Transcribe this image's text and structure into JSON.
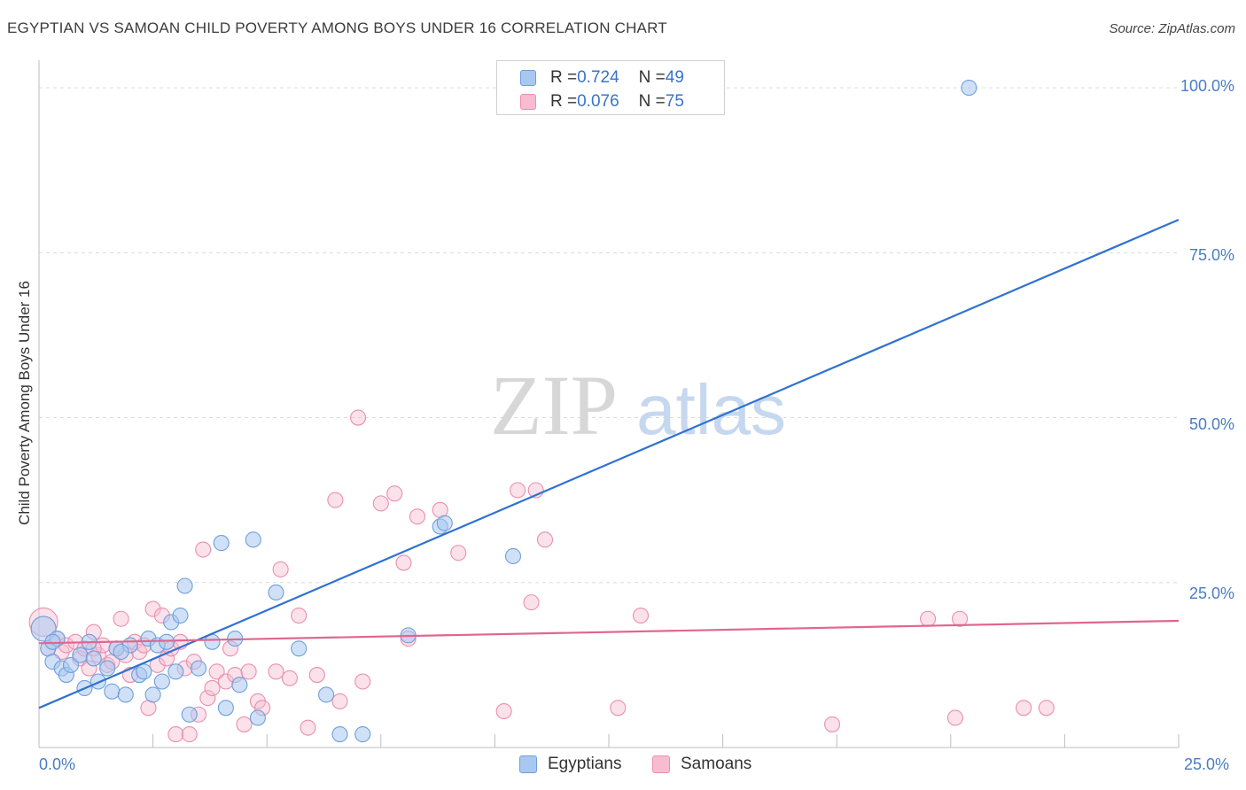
{
  "header": {
    "title": "EGYPTIAN VS SAMOAN CHILD POVERTY AMONG BOYS UNDER 16 CORRELATION CHART",
    "source": "Source: ZipAtlas.com"
  },
  "watermark": {
    "zip": "ZIP",
    "atlas": "atlas"
  },
  "legend_top": {
    "egyptians": {
      "r_label": "R = ",
      "r_value": "0.724",
      "n_label": "N = ",
      "n_value": "49"
    },
    "samoans": {
      "r_label": "R = ",
      "r_value": "0.076",
      "n_label": "N = ",
      "n_value": "75"
    }
  },
  "colors": {
    "egyptians_fill": "#a9c8f0",
    "egyptians_stroke": "#6e9fdc",
    "egyptians_line": "#2f72d0",
    "samoans_fill": "#f7bcd0",
    "samoans_stroke": "#ea8fae",
    "samoans_line": "#e0668f",
    "axis_text": "#4a7cc4",
    "grid": "#dcdcdc"
  },
  "chart_data": {
    "type": "scatter",
    "title": "EGYPTIAN VS SAMOAN CHILD POVERTY AMONG BOYS UNDER 16 CORRELATION CHART",
    "xlabel": "",
    "ylabel": "Child Poverty Among Boys Under 16",
    "xlim": [
      0,
      25
    ],
    "ylim": [
      0,
      100
    ],
    "x_tick_labels": [
      "0.0%",
      "25.0%"
    ],
    "y_ticks": [
      25,
      50,
      75,
      100
    ],
    "y_tick_labels": [
      "25.0%",
      "50.0%",
      "75.0%",
      "100.0%"
    ],
    "grid": true,
    "legend_position": "top-center",
    "series": [
      {
        "name": "Egyptians",
        "r": 0.724,
        "n": 49,
        "trend": {
          "x": [
            0,
            25
          ],
          "y": [
            6,
            80
          ]
        },
        "points": [
          {
            "x": 0.1,
            "y": 18
          },
          {
            "x": 0.2,
            "y": 15
          },
          {
            "x": 0.3,
            "y": 13
          },
          {
            "x": 0.4,
            "y": 16.5
          },
          {
            "x": 0.5,
            "y": 12
          },
          {
            "x": 0.6,
            "y": 11
          },
          {
            "x": 0.7,
            "y": 12.5
          },
          {
            "x": 0.9,
            "y": 14
          },
          {
            "x": 1.0,
            "y": 9
          },
          {
            "x": 1.1,
            "y": 16
          },
          {
            "x": 1.2,
            "y": 13.5
          },
          {
            "x": 1.3,
            "y": 10
          },
          {
            "x": 1.5,
            "y": 12
          },
          {
            "x": 1.6,
            "y": 8.5
          },
          {
            "x": 1.7,
            "y": 15
          },
          {
            "x": 1.9,
            "y": 8
          },
          {
            "x": 2.0,
            "y": 15.5
          },
          {
            "x": 2.2,
            "y": 11
          },
          {
            "x": 2.3,
            "y": 11.5
          },
          {
            "x": 2.4,
            "y": 16.5
          },
          {
            "x": 2.5,
            "y": 8
          },
          {
            "x": 2.6,
            "y": 15.5
          },
          {
            "x": 2.7,
            "y": 10
          },
          {
            "x": 2.8,
            "y": 16
          },
          {
            "x": 2.9,
            "y": 19
          },
          {
            "x": 3.0,
            "y": 11.5
          },
          {
            "x": 3.1,
            "y": 20
          },
          {
            "x": 3.2,
            "y": 24.5
          },
          {
            "x": 3.3,
            "y": 5
          },
          {
            "x": 3.5,
            "y": 12
          },
          {
            "x": 3.8,
            "y": 16
          },
          {
            "x": 4.0,
            "y": 31
          },
          {
            "x": 4.1,
            "y": 6
          },
          {
            "x": 4.3,
            "y": 16.5
          },
          {
            "x": 4.4,
            "y": 9.5
          },
          {
            "x": 4.7,
            "y": 31.5
          },
          {
            "x": 4.8,
            "y": 4.5
          },
          {
            "x": 5.2,
            "y": 23.5
          },
          {
            "x": 5.7,
            "y": 15
          },
          {
            "x": 6.3,
            "y": 8
          },
          {
            "x": 6.6,
            "y": 2
          },
          {
            "x": 7.1,
            "y": 2
          },
          {
            "x": 8.1,
            "y": 17
          },
          {
            "x": 8.8,
            "y": 33.5
          },
          {
            "x": 8.9,
            "y": 34
          },
          {
            "x": 10.4,
            "y": 29
          },
          {
            "x": 20.4,
            "y": 100
          },
          {
            "x": 0.3,
            "y": 16
          },
          {
            "x": 1.8,
            "y": 14.5
          }
        ]
      },
      {
        "name": "Samoans",
        "r": 0.076,
        "n": 75,
        "trend": {
          "x": [
            0,
            25
          ],
          "y": [
            15.8,
            19.2
          ]
        },
        "points": [
          {
            "x": 0.1,
            "y": 19
          },
          {
            "x": 0.2,
            "y": 15
          },
          {
            "x": 0.4,
            "y": 16.5
          },
          {
            "x": 0.5,
            "y": 14.5
          },
          {
            "x": 0.6,
            "y": 15.5
          },
          {
            "x": 0.8,
            "y": 16
          },
          {
            "x": 0.9,
            "y": 13.5
          },
          {
            "x": 1.0,
            "y": 15
          },
          {
            "x": 1.1,
            "y": 12
          },
          {
            "x": 1.2,
            "y": 17.5
          },
          {
            "x": 1.3,
            "y": 14
          },
          {
            "x": 1.4,
            "y": 15.5
          },
          {
            "x": 1.5,
            "y": 12.5
          },
          {
            "x": 1.6,
            "y": 13
          },
          {
            "x": 1.7,
            "y": 15
          },
          {
            "x": 1.8,
            "y": 19.5
          },
          {
            "x": 1.9,
            "y": 14
          },
          {
            "x": 2.0,
            "y": 11
          },
          {
            "x": 2.1,
            "y": 16
          },
          {
            "x": 2.2,
            "y": 14.5
          },
          {
            "x": 2.3,
            "y": 15.5
          },
          {
            "x": 2.4,
            "y": 6
          },
          {
            "x": 2.5,
            "y": 21
          },
          {
            "x": 2.6,
            "y": 12.5
          },
          {
            "x": 2.7,
            "y": 20
          },
          {
            "x": 2.8,
            "y": 13.5
          },
          {
            "x": 2.9,
            "y": 15
          },
          {
            "x": 3.0,
            "y": 2
          },
          {
            "x": 3.1,
            "y": 16
          },
          {
            "x": 3.2,
            "y": 12
          },
          {
            "x": 3.3,
            "y": 2
          },
          {
            "x": 3.4,
            "y": 13
          },
          {
            "x": 3.5,
            "y": 5
          },
          {
            "x": 3.6,
            "y": 30
          },
          {
            "x": 3.7,
            "y": 7.5
          },
          {
            "x": 3.8,
            "y": 9
          },
          {
            "x": 3.9,
            "y": 11.5
          },
          {
            "x": 4.1,
            "y": 10
          },
          {
            "x": 4.2,
            "y": 15
          },
          {
            "x": 4.3,
            "y": 11
          },
          {
            "x": 4.5,
            "y": 3.5
          },
          {
            "x": 4.6,
            "y": 11.5
          },
          {
            "x": 4.8,
            "y": 7
          },
          {
            "x": 4.9,
            "y": 6
          },
          {
            "x": 5.2,
            "y": 11.5
          },
          {
            "x": 5.3,
            "y": 27
          },
          {
            "x": 5.5,
            "y": 10.5
          },
          {
            "x": 5.7,
            "y": 20
          },
          {
            "x": 5.9,
            "y": 3
          },
          {
            "x": 6.1,
            "y": 11
          },
          {
            "x": 6.5,
            "y": 37.5
          },
          {
            "x": 6.6,
            "y": 7
          },
          {
            "x": 7.0,
            "y": 50
          },
          {
            "x": 7.1,
            "y": 10
          },
          {
            "x": 7.5,
            "y": 37
          },
          {
            "x": 7.8,
            "y": 38.5
          },
          {
            "x": 8.0,
            "y": 28
          },
          {
            "x": 8.1,
            "y": 16.5
          },
          {
            "x": 8.3,
            "y": 35
          },
          {
            "x": 8.8,
            "y": 36
          },
          {
            "x": 9.2,
            "y": 29.5
          },
          {
            "x": 10.2,
            "y": 5.5
          },
          {
            "x": 10.5,
            "y": 39
          },
          {
            "x": 10.8,
            "y": 22
          },
          {
            "x": 10.9,
            "y": 39
          },
          {
            "x": 11.1,
            "y": 31.5
          },
          {
            "x": 12.7,
            "y": 6
          },
          {
            "x": 13.2,
            "y": 20
          },
          {
            "x": 17.4,
            "y": 3.5
          },
          {
            "x": 19.5,
            "y": 19.5
          },
          {
            "x": 20.1,
            "y": 4.5
          },
          {
            "x": 20.2,
            "y": 19.5
          },
          {
            "x": 21.6,
            "y": 6
          },
          {
            "x": 22.1,
            "y": 6
          },
          {
            "x": 1.2,
            "y": 15
          }
        ]
      }
    ]
  }
}
